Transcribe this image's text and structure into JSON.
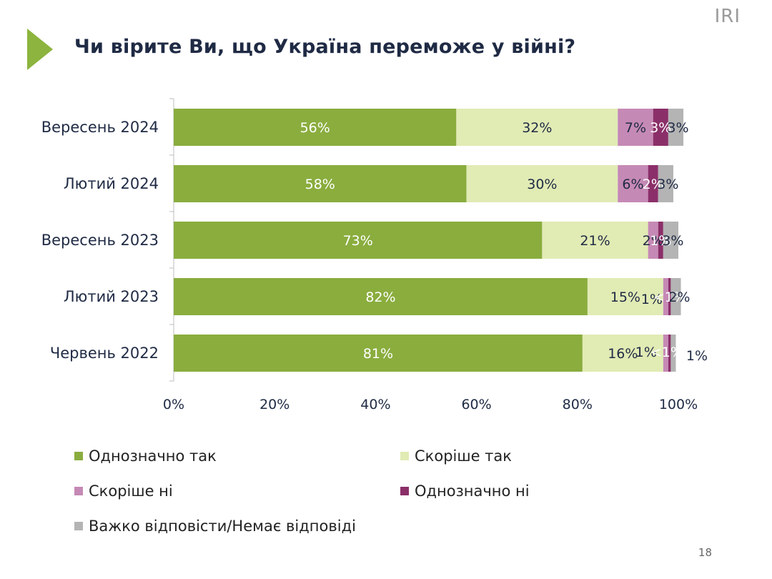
{
  "header": {
    "title": "Чи вірите Ви, що Україна переможе у війні?",
    "brand": "IRI",
    "page_number": "18"
  },
  "colors": {
    "accent_arrow": "#8cb43e",
    "series": [
      "#8aad3e",
      "#e1ebb4",
      "#c589b5",
      "#8b2f69",
      "#b4b4b4"
    ],
    "label_light": "#ffffff",
    "label_dark": "#1f2a44"
  },
  "icons": {
    "header_arrow": "triangle-arrow-icon"
  },
  "chart_data": {
    "type": "bar",
    "orientation": "horizontal",
    "stacked": true,
    "categories": [
      "Вересень 2024",
      "Лютий 2024",
      "Вересень 2023",
      "Лютий 2023",
      "Червень 2022"
    ],
    "series": [
      {
        "name": "Однозначно так",
        "values": [
          56,
          58,
          73,
          82,
          81
        ],
        "labels": [
          "56%",
          "58%",
          "73%",
          "82%",
          "81%"
        ]
      },
      {
        "name": "Скоріше так",
        "values": [
          32,
          30,
          21,
          15,
          16
        ],
        "labels": [
          "32%",
          "30%",
          "21%",
          "15%",
          "16%"
        ]
      },
      {
        "name": "Скоріше ні",
        "values": [
          7,
          6,
          2,
          1,
          1
        ],
        "labels": [
          "7%",
          "6%",
          "2%",
          "1%",
          "1%"
        ]
      },
      {
        "name": "Однозначно ні",
        "values": [
          3,
          2,
          1,
          0.5,
          0.5
        ],
        "labels": [
          "3%",
          "2%",
          "1%",
          "<1%",
          "<1%"
        ]
      },
      {
        "name": "Важко відповісти/Немає відповіді",
        "values": [
          3,
          3,
          3,
          2,
          1
        ],
        "labels": [
          "3%",
          "3%",
          "3%",
          "2%",
          "1%"
        ]
      }
    ],
    "xlim": [
      0,
      100
    ],
    "xticks": [
      "0%",
      "20%",
      "40%",
      "60%",
      "80%",
      "100%"
    ],
    "legend_position": "bottom",
    "grid": false
  }
}
